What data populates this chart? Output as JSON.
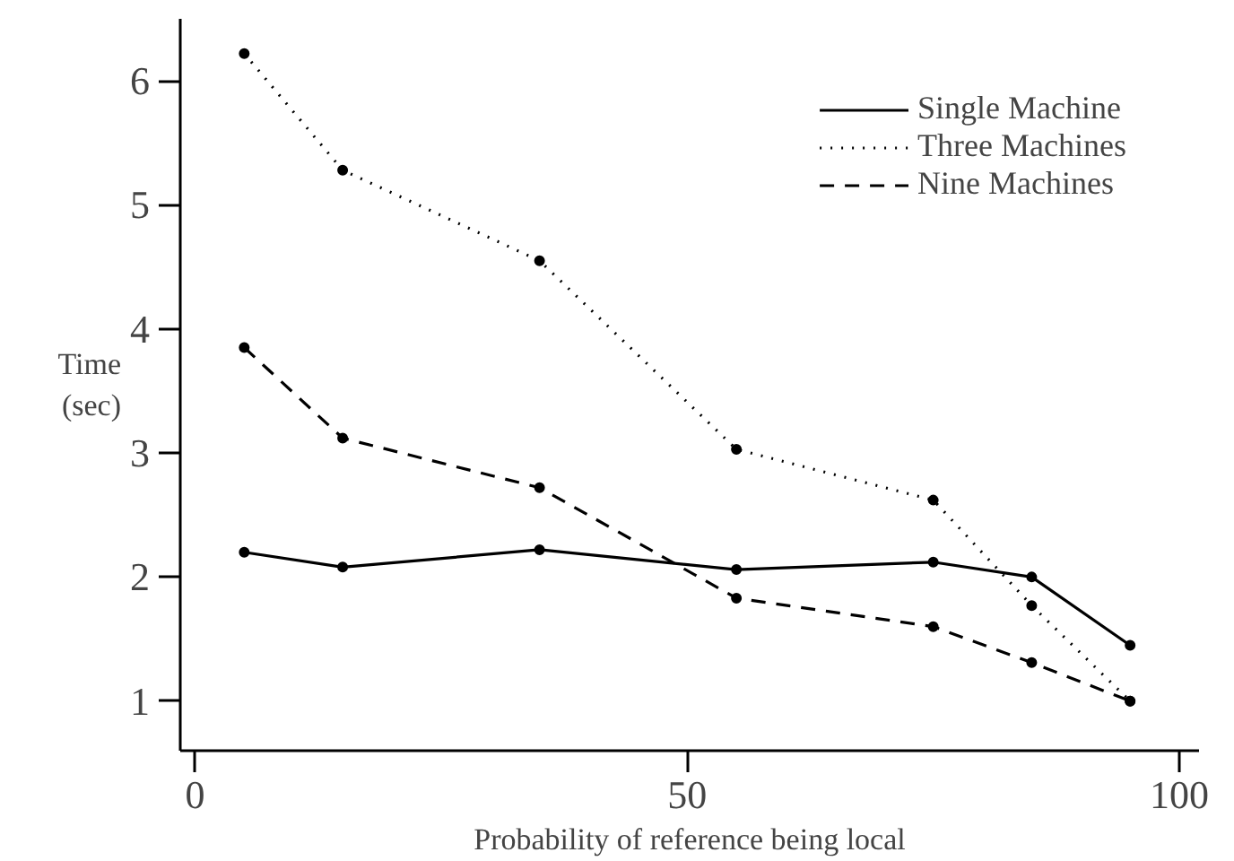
{
  "chart_data": {
    "type": "line",
    "xlabel": "Probability of reference being local",
    "ylabel": "Time\n(sec)",
    "x": [
      5,
      15,
      35,
      55,
      75,
      85,
      95
    ],
    "series": [
      {
        "name": "Single Machine",
        "color": "#000000",
        "line_style": "solid",
        "values": [
          2.2,
          2.08,
          2.22,
          2.06,
          2.12,
          2.0,
          1.45
        ]
      },
      {
        "name": "Three Machines",
        "color": "#000000",
        "line_style": "dotted",
        "values": [
          6.22,
          5.28,
          4.55,
          3.03,
          2.62,
          1.77,
          1.0
        ]
      },
      {
        "name": "Nine Machines",
        "color": "#000000",
        "line_style": "dashed",
        "values": [
          3.85,
          3.12,
          2.72,
          1.83,
          1.6,
          1.31,
          1.0
        ]
      }
    ],
    "xlim": [
      -1.5,
      102
    ],
    "ylim": [
      0.6,
      6.5
    ],
    "xticks": [
      0,
      50,
      100
    ],
    "yticks": [
      1,
      2,
      3,
      4,
      5,
      6
    ],
    "marker": "circle",
    "grid": false,
    "legend": "top right"
  }
}
